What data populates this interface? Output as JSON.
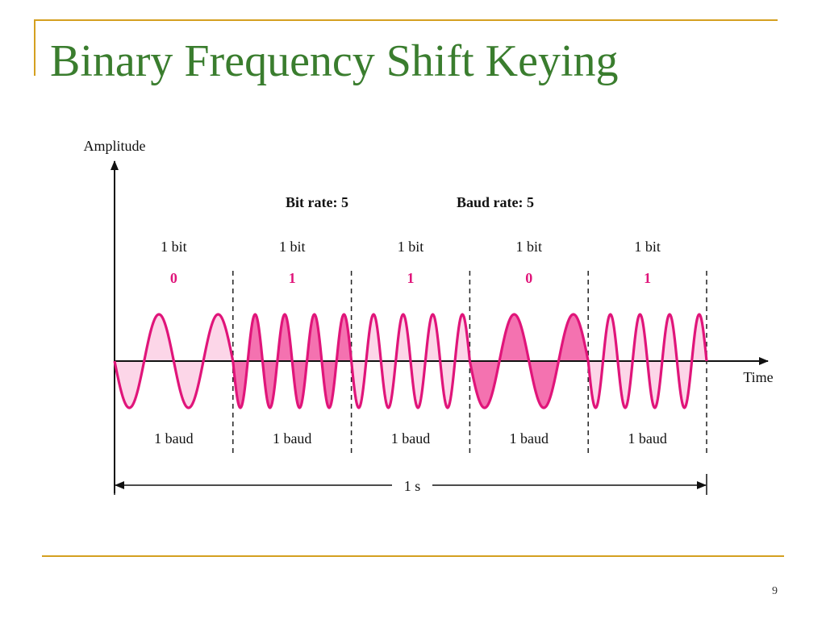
{
  "slide": {
    "title": "Binary Frequency Shift Keying",
    "page_number": "9"
  },
  "diagram": {
    "y_axis_label": "Amplitude",
    "x_axis_label": "Time",
    "bit_rate_label": "Bit rate: 5",
    "baud_rate_label": "Baud rate: 5",
    "duration_label": "1 s",
    "segments": [
      {
        "bit_label": "1 bit",
        "bit": "0",
        "baud_label": "1 baud",
        "cycles": 2,
        "filled": false
      },
      {
        "bit_label": "1 bit",
        "bit": "1",
        "baud_label": "1 baud",
        "cycles": 4,
        "filled": true
      },
      {
        "bit_label": "1 bit",
        "bit": "1",
        "baud_label": "1 baud",
        "cycles": 4,
        "filled": false
      },
      {
        "bit_label": "1 bit",
        "bit": "0",
        "baud_label": "1 baud",
        "cycles": 2,
        "filled": true
      },
      {
        "bit_label": "1 bit",
        "bit": "1",
        "baud_label": "1 baud",
        "cycles": 4,
        "filled": false
      }
    ],
    "colors": {
      "signal": "#e0157a",
      "fill_dark": "#f472b0",
      "fill_light": "#fcd6e8",
      "bit_value": "#e0157a",
      "axis": "#111111",
      "divider": "#222222"
    }
  }
}
